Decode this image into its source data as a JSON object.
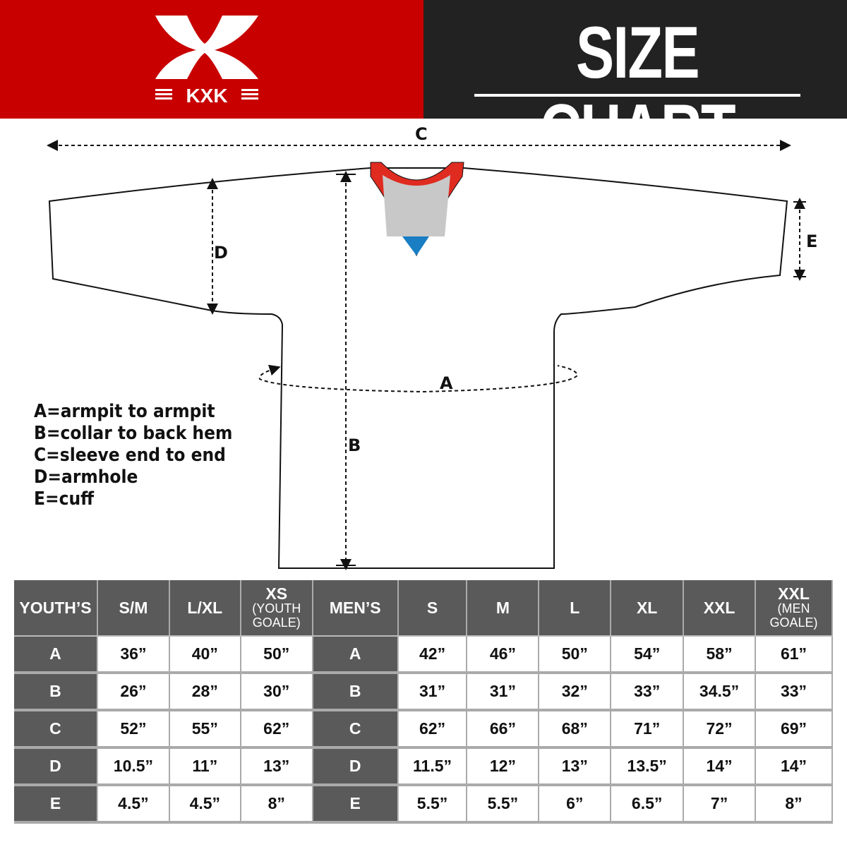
{
  "brand": {
    "name": "KXK",
    "primary_color": "#c80000",
    "dark_color": "#222222"
  },
  "header": {
    "title": "SIZE CHART"
  },
  "diagram": {
    "labels": {
      "a": "A",
      "b": "B",
      "c": "C",
      "d": "D",
      "e": "E"
    },
    "collar_colors": {
      "trim": "#e02b20",
      "inner": "#c8c8c8",
      "accent": "#1a7ec4"
    }
  },
  "legend": [
    "A=armpit to armpit",
    "B=collar to back hem",
    "C=sleeve end to end",
    "D=armhole",
    "E=cuff"
  ],
  "table": {
    "youth_header": "YOUTH’S",
    "youth_sizes": [
      {
        "main": "S/M",
        "sub": ""
      },
      {
        "main": "L/XL",
        "sub": ""
      },
      {
        "main": "XS",
        "sub": "(YOUTH GOALE)"
      }
    ],
    "men_header": "MEN’S",
    "men_sizes": [
      {
        "main": "S",
        "sub": ""
      },
      {
        "main": "M",
        "sub": ""
      },
      {
        "main": "L",
        "sub": ""
      },
      {
        "main": "XL",
        "sub": ""
      },
      {
        "main": "XXL",
        "sub": ""
      },
      {
        "main": "XXL",
        "sub": "(MEN GOALE)"
      }
    ],
    "rows": [
      {
        "label": "A",
        "youth": [
          "36”",
          "40”",
          "50”"
        ],
        "men": [
          "42”",
          "46”",
          "50”",
          "54”",
          "58”",
          "61”"
        ]
      },
      {
        "label": "B",
        "youth": [
          "26”",
          "28”",
          "30”"
        ],
        "men": [
          "31”",
          "31”",
          "32”",
          "33”",
          "34.5”",
          "33”"
        ]
      },
      {
        "label": "C",
        "youth": [
          "52”",
          "55”",
          "62”"
        ],
        "men": [
          "62”",
          "66”",
          "68”",
          "71”",
          "72”",
          "69”"
        ]
      },
      {
        "label": "D",
        "youth": [
          "10.5”",
          "11”",
          "13”"
        ],
        "men": [
          "11.5”",
          "12”",
          "13”",
          "13.5”",
          "14”",
          "14”"
        ]
      },
      {
        "label": "E",
        "youth": [
          "4.5”",
          "4.5”",
          "8”"
        ],
        "men": [
          "5.5”",
          "5.5”",
          "6”",
          "6.5”",
          "7”",
          "8”"
        ]
      }
    ]
  }
}
